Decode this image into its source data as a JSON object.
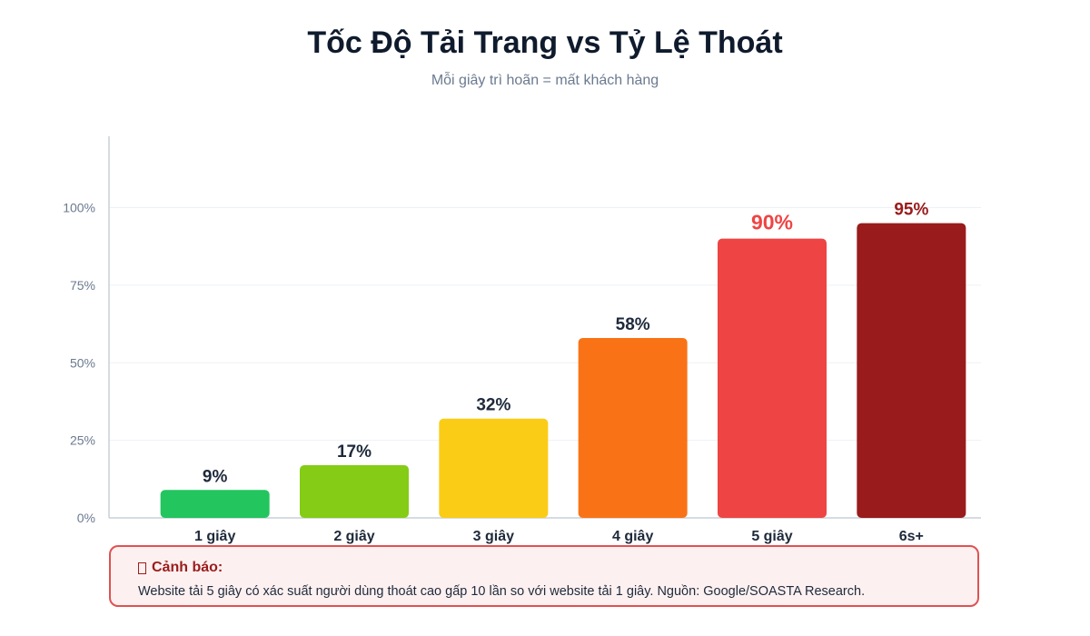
{
  "header": {
    "title": "Tốc Độ Tải Trang vs Tỷ Lệ Thoát",
    "subtitle": "Mỗi giây trì hoãn = mất khách hàng"
  },
  "chart_data": {
    "type": "bar",
    "categories": [
      "1 giây",
      "2 giây",
      "3 giây",
      "4 giây",
      "5 giây",
      "6s+"
    ],
    "values": [
      9,
      17,
      32,
      58,
      90,
      95
    ],
    "value_labels": [
      "9%",
      "17%",
      "32%",
      "58%",
      "90%",
      "95%"
    ],
    "colors": [
      "#22c55e",
      "#84cc16",
      "#facc15",
      "#f97316",
      "#ef4444",
      "#991b1b"
    ],
    "value_label_colors": [
      "#1e2a3b",
      "#1e2a3b",
      "#1e2a3b",
      "#1e2a3b",
      "#ef4444",
      "#991b1b"
    ],
    "highlighted_categories": [
      "5 giây"
    ],
    "yticks": [
      0,
      25,
      50,
      75,
      100
    ],
    "ytick_labels": [
      "0%",
      "25%",
      "50%",
      "75%",
      "100%"
    ],
    "ylim": [
      0,
      123
    ],
    "grid": true,
    "xlabel": "",
    "ylabel": ""
  },
  "warning": {
    "icon": "warning-icon",
    "title": "Cảnh báo:",
    "text": "Website tải 5 giây có xác suất người dùng thoát cao gấp 10 lần so với website tải 1 giây. Nguồn: Google/SOASTA Research."
  }
}
